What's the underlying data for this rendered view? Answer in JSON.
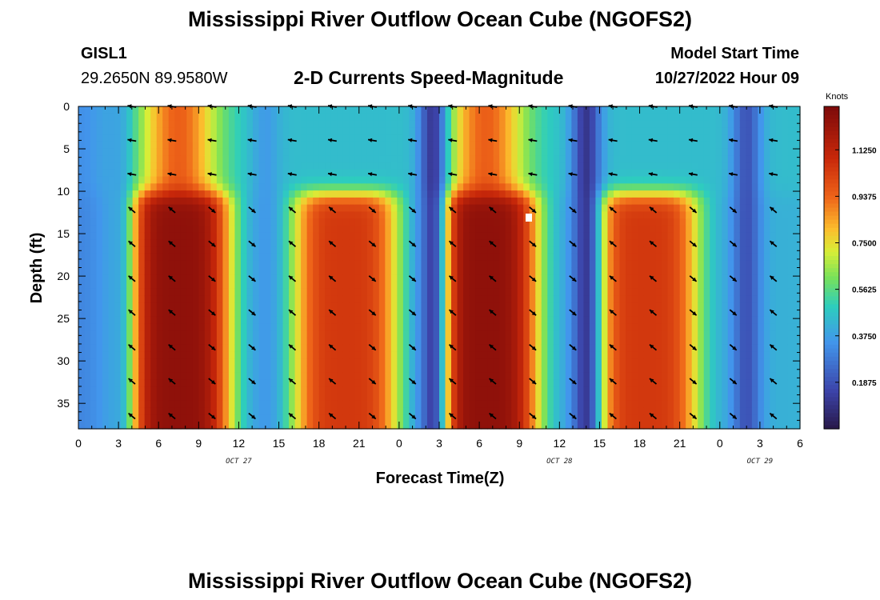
{
  "title": "Mississippi River Outflow Ocean Cube (NGOFS2)",
  "station": {
    "id": "GISL1",
    "coords": "29.2650N  89.9580W"
  },
  "subtitle": "2-D Currents Speed-Magnitude",
  "model": {
    "label": "Model Start Time",
    "time": "10/27/2022 Hour 09"
  },
  "footer_title": "Mississippi River Outflow Ocean Cube (NGOFS2)",
  "chart_data": {
    "type": "heatmap",
    "title": "2-D Currents Speed-Magnitude",
    "xlabel": "Forecast Time(Z)",
    "ylabel": "Depth (ft)",
    "colorbar_label": "Knots",
    "x_tick_labels": [
      "0",
      "3",
      "6",
      "9",
      "12",
      "15",
      "18",
      "21",
      "0",
      "3",
      "6",
      "9",
      "12",
      "15",
      "18",
      "21",
      "0",
      "3",
      "6"
    ],
    "x_range_hours": [
      0,
      54
    ],
    "date_labels": [
      {
        "text": "OCT 27",
        "hour": 12
      },
      {
        "text": "OCT 28",
        "hour": 36
      },
      {
        "text": "OCT 29",
        "hour": 51
      }
    ],
    "y_ticks": [
      0,
      5,
      10,
      15,
      20,
      25,
      30,
      35
    ],
    "y_tick_labels": [
      "0",
      "5",
      "10",
      "15",
      "20",
      "25",
      "30",
      "35"
    ],
    "ylim": [
      0,
      38
    ],
    "y_inverted": true,
    "colorbar_ticks": [
      0.1875,
      0.375,
      0.5625,
      0.75,
      0.9375,
      1.125
    ],
    "colorbar_tick_labels": [
      "0.1875",
      "0.3750",
      "0.5625",
      "0.7500",
      "0.9375",
      "1.1250"
    ],
    "colorbar_range": [
      0,
      1.3
    ],
    "surface_speed_peaks": [
      {
        "hour": 7.5,
        "speed": 0.95
      },
      {
        "hour": 30.5,
        "speed": 0.95
      }
    ],
    "subsurface_speed_peaks": [
      {
        "hour": 7.5,
        "speed": 1.25
      },
      {
        "hour": 20.0,
        "speed": 1.05
      },
      {
        "hour": 30.5,
        "speed": 1.25
      },
      {
        "hour": 42.5,
        "speed": 1.05
      }
    ],
    "slack_minima": [
      {
        "hour": 3.0,
        "speed": 0.4
      },
      {
        "hour": 14.0,
        "speed": 0.35
      },
      {
        "hour": 26.5,
        "speed": 0.05
      },
      {
        "hour": 38.0,
        "speed": 0.05
      },
      {
        "hour": 50.0,
        "speed": 0.15
      }
    ],
    "current_direction_surface": "west / south-west",
    "current_direction_subsurface": "alternating south-east (flood) and north-west (ebb)"
  }
}
